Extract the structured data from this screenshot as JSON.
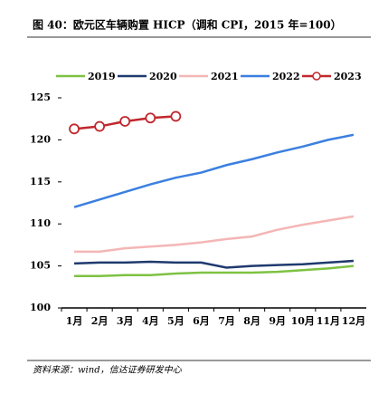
{
  "chart_data": {
    "type": "line",
    "title": "图 40：欧元区车辆购置 HICP（调和 CPI，2015 年=100）",
    "source": "资料来源：wind，信达证券研发中心",
    "categories": [
      "1月",
      "2月",
      "3月",
      "4月",
      "5月",
      "6月",
      "7月",
      "8月",
      "9月",
      "10月",
      "11月",
      "12月"
    ],
    "series": [
      {
        "name": "2019",
        "color": "#7dc242",
        "values": [
          103.8,
          103.8,
          103.9,
          103.9,
          104.1,
          104.2,
          104.2,
          104.2,
          104.3,
          104.5,
          104.7,
          105.0
        ]
      },
      {
        "name": "2020",
        "color": "#1f3a6e",
        "values": [
          105.3,
          105.4,
          105.4,
          105.5,
          105.4,
          105.4,
          104.8,
          105.0,
          105.1,
          105.2,
          105.4,
          105.6
        ]
      },
      {
        "name": "2021",
        "color": "#f4b6b6",
        "values": [
          106.7,
          106.7,
          107.1,
          107.3,
          107.5,
          107.8,
          108.2,
          108.5,
          109.3,
          109.9,
          110.4,
          110.9
        ]
      },
      {
        "name": "2022",
        "color": "#3b7fe0",
        "values": [
          112.0,
          112.9,
          113.8,
          114.7,
          115.5,
          116.1,
          117.0,
          117.7,
          118.5,
          119.2,
          120.0,
          120.6
        ]
      },
      {
        "name": "2023",
        "color": "#c0282d",
        "marker": "open-circle",
        "values": [
          121.3,
          121.6,
          122.2,
          122.6,
          122.8,
          null,
          null,
          null,
          null,
          null,
          null,
          null
        ]
      }
    ],
    "ylim": [
      100,
      125
    ],
    "yticks": [
      100,
      105,
      110,
      115,
      120,
      125
    ],
    "legend": "top"
  }
}
